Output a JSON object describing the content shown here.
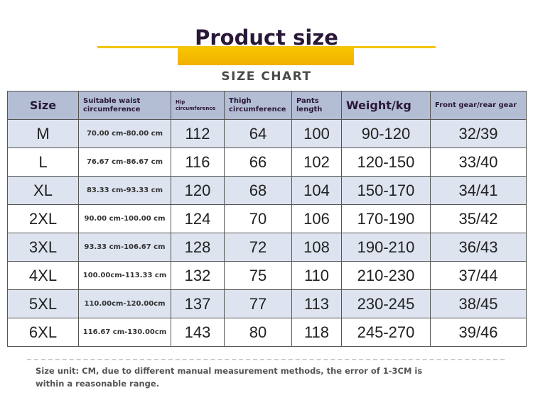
{
  "header": {
    "title": "Product size",
    "subtitle": "SIZE CHART"
  },
  "table": {
    "headers": [
      "Size",
      "Suitable waist circumference",
      "Hip circumference",
      "Thigh circumference",
      "Pants length",
      "Weight/kg",
      "Front gear/rear gear"
    ],
    "rows": [
      [
        "M",
        "70.00 cm-80.00 cm",
        "112",
        "64",
        "100",
        "90-120",
        "32/39"
      ],
      [
        "L",
        "76.67 cm-86.67 cm",
        "116",
        "66",
        "102",
        "120-150",
        "33/40"
      ],
      [
        "XL",
        "83.33 cm-93.33 cm",
        "120",
        "68",
        "104",
        "150-170",
        "34/41"
      ],
      [
        "2XL",
        "90.00 cm-100.00 cm",
        "124",
        "70",
        "106",
        "170-190",
        "35/42"
      ],
      [
        "3XL",
        "93.33 cm-106.67 cm",
        "128",
        "72",
        "108",
        "190-210",
        "36/43"
      ],
      [
        "4XL",
        "100.00cm-113.33 cm",
        "132",
        "75",
        "110",
        "210-230",
        "37/44"
      ],
      [
        "5XL",
        "110.00cm-120.00cm",
        "137",
        "77",
        "113",
        "230-245",
        "38/45"
      ],
      [
        "6XL",
        "116.67 cm-130.00cm",
        "143",
        "80",
        "118",
        "245-270",
        "39/46"
      ]
    ]
  },
  "footnote": "Size unit: CM, due to different manual measurement methods, the error of 1-3CM is within a reasonable range."
}
